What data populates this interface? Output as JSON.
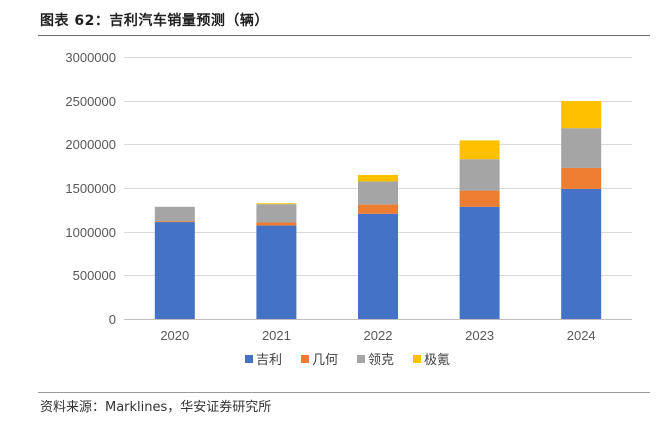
{
  "figure_title": "图表 62：吉利汽车销量预测（辆）",
  "source": "资料来源：Marklines，华安证券研究所",
  "chart_data": {
    "type": "bar",
    "stacked": true,
    "categories": [
      "2020",
      "2021",
      "2022",
      "2023",
      "2024"
    ],
    "series": [
      {
        "name": "吉利",
        "color": "#4472C4",
        "values": [
          1110000,
          1070000,
          1205000,
          1285000,
          1490000
        ]
      },
      {
        "name": "几何",
        "color": "#ED7D31",
        "values": [
          10000,
          35000,
          105000,
          185000,
          240000
        ]
      },
      {
        "name": "领克",
        "color": "#A5A5A5",
        "values": [
          165000,
          210000,
          265000,
          360000,
          455000
        ]
      },
      {
        "name": "极氪",
        "color": "#FFC000",
        "values": [
          0,
          10000,
          75000,
          215000,
          310000
        ]
      }
    ],
    "ylim": [
      0,
      3000000
    ],
    "yticks": [
      "0",
      "500000",
      "1000000",
      "1500000",
      "2000000",
      "2500000",
      "3000000"
    ],
    "grid": true,
    "legend_position": "bottom"
  }
}
